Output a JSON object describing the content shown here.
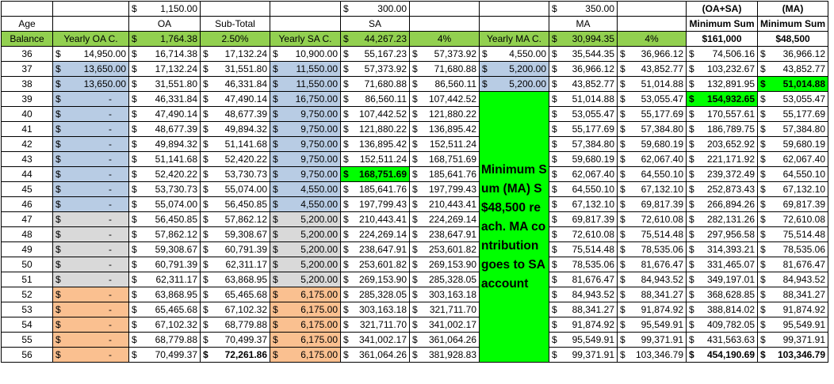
{
  "header": {
    "row1": {
      "oa_amount": "1,150.00",
      "sa_amount": "300.00",
      "ma_amount": "350.00",
      "oa_sa_label": "(OA+SA)",
      "ma_label": "(MA)"
    },
    "row2": {
      "age_label": "Age",
      "oa_label": "OA",
      "subtotal_label": "Sub-Total",
      "sa_label": "SA",
      "ma_label": "MA",
      "min_sum_1": "Minimum Sum",
      "min_sum_2": "Minimum Sum"
    },
    "row3": {
      "balance_label": "Balance",
      "yearly_oa_label": "Yearly OA C.",
      "oa_balance": "1,764.38",
      "oa_rate": "2.50%",
      "yearly_sa_label": "Yearly SA C.",
      "sa_balance": "44,267.23",
      "sa_rate": "4%",
      "yearly_ma_label": "Yearly MA C.",
      "ma_balance": "30,994.35",
      "ma_rate": "4%",
      "min_sum_oa_sa": "$161,000",
      "min_sum_ma": "$48,500"
    }
  },
  "currency_symbol": "$",
  "note_text": "Minimum Sum (MA) S$48,500 reach. MA contribution goes to SA account",
  "rows": [
    {
      "age": "36",
      "yoa": "14,950.00",
      "oa": "16,714.38",
      "sub": "17,132.24",
      "ysa": "10,900.00",
      "sa": "55,167.23",
      "sa4": "57,373.92",
      "yma": "4,550.00",
      "ma": "35,544.35",
      "ma4": "36,966.12",
      "ms": "74,506.16",
      "msma": "36,966.12"
    },
    {
      "age": "37",
      "yoa": "13,650.00",
      "oa": "17,132.24",
      "sub": "31,551.80",
      "ysa": "11,550.00",
      "sa": "57,373.92",
      "sa4": "71,680.88",
      "yma": "5,200.00",
      "ma": "36,966.12",
      "ma4": "43,852.77",
      "ms": "103,232.67",
      "msma": "43,852.77"
    },
    {
      "age": "38",
      "yoa": "13,650.00",
      "oa": "31,551.80",
      "sub": "46,331.84",
      "ysa": "11,550.00",
      "sa": "71,680.88",
      "sa4": "86,560.11",
      "yma": "5,200.00",
      "ma": "43,852.77",
      "ma4": "51,014.88",
      "ms": "132,891.95",
      "msma": "51,014.88"
    },
    {
      "age": "39",
      "yoa": "-",
      "oa": "46,331.84",
      "sub": "47,490.14",
      "ysa": "16,750.00",
      "sa": "86,560.11",
      "sa4": "107,442.52",
      "ma": "51,014.88",
      "ma4": "53,055.47",
      "ms": "154,932.65",
      "msma": "53,055.47"
    },
    {
      "age": "40",
      "yoa": "-",
      "oa": "47,490.14",
      "sub": "48,677.39",
      "ysa": "9,750.00",
      "sa": "107,442.52",
      "sa4": "121,880.22",
      "ma": "53,055.47",
      "ma4": "55,177.69",
      "ms": "170,557.61",
      "msma": "55,177.69"
    },
    {
      "age": "41",
      "yoa": "-",
      "oa": "48,677.39",
      "sub": "49,894.32",
      "ysa": "9,750.00",
      "sa": "121,880.22",
      "sa4": "136,895.42",
      "ma": "55,177.69",
      "ma4": "57,384.80",
      "ms": "186,789.75",
      "msma": "57,384.80"
    },
    {
      "age": "42",
      "yoa": "-",
      "oa": "49,894.32",
      "sub": "51,141.68",
      "ysa": "9,750.00",
      "sa": "136,895.42",
      "sa4": "152,511.24",
      "ma": "57,384.80",
      "ma4": "59,680.19",
      "ms": "203,652.92",
      "msma": "59,680.19"
    },
    {
      "age": "43",
      "yoa": "-",
      "oa": "51,141.68",
      "sub": "52,420.22",
      "ysa": "9,750.00",
      "sa": "152,511.24",
      "sa4": "168,751.69",
      "ma": "59,680.19",
      "ma4": "62,067.40",
      "ms": "221,171.92",
      "msma": "62,067.40"
    },
    {
      "age": "44",
      "yoa": "-",
      "oa": "52,420.22",
      "sub": "53,730.73",
      "ysa": "9,750.00",
      "sa": "168,751.69",
      "sa4": "185,641.76",
      "ma": "62,067.40",
      "ma4": "64,550.10",
      "ms": "239,372.49",
      "msma": "64,550.10"
    },
    {
      "age": "45",
      "yoa": "-",
      "oa": "53,730.73",
      "sub": "55,074.00",
      "ysa": "4,550.00",
      "sa": "185,641.76",
      "sa4": "197,799.43",
      "ma": "64,550.10",
      "ma4": "67,132.10",
      "ms": "252,873.43",
      "msma": "67,132.10"
    },
    {
      "age": "46",
      "yoa": "-",
      "oa": "55,074.00",
      "sub": "56,450.85",
      "ysa": "4,550.00",
      "sa": "197,799.43",
      "sa4": "210,443.41",
      "ma": "67,132.10",
      "ma4": "69,817.39",
      "ms": "266,894.26",
      "msma": "69,817.39"
    },
    {
      "age": "47",
      "yoa": "-",
      "oa": "56,450.85",
      "sub": "57,862.12",
      "ysa": "5,200.00",
      "sa": "210,443.41",
      "sa4": "224,269.14",
      "ma": "69,817.39",
      "ma4": "72,610.08",
      "ms": "282,131.26",
      "msma": "72,610.08"
    },
    {
      "age": "48",
      "yoa": "-",
      "oa": "57,862.12",
      "sub": "59,308.67",
      "ysa": "5,200.00",
      "sa": "224,269.14",
      "sa4": "238,647.91",
      "ma": "72,610.08",
      "ma4": "75,514.48",
      "ms": "297,956.58",
      "msma": "75,514.48"
    },
    {
      "age": "49",
      "yoa": "-",
      "oa": "59,308.67",
      "sub": "60,791.39",
      "ysa": "5,200.00",
      "sa": "238,647.91",
      "sa4": "253,601.82",
      "ma": "75,514.48",
      "ma4": "78,535.06",
      "ms": "314,393.21",
      "msma": "78,535.06"
    },
    {
      "age": "50",
      "yoa": "-",
      "oa": "60,791.39",
      "sub": "62,311.17",
      "ysa": "5,200.00",
      "sa": "253,601.82",
      "sa4": "269,153.90",
      "ma": "78,535.06",
      "ma4": "81,676.47",
      "ms": "331,465.07",
      "msma": "81,676.47"
    },
    {
      "age": "51",
      "yoa": "-",
      "oa": "62,311.17",
      "sub": "63,868.95",
      "ysa": "5,200.00",
      "sa": "269,153.90",
      "sa4": "285,328.05",
      "ma": "81,676.47",
      "ma4": "84,943.52",
      "ms": "349,197.01",
      "msma": "84,943.52"
    },
    {
      "age": "52",
      "yoa": "-",
      "oa": "63,868.95",
      "sub": "65,465.68",
      "ysa": "6,175.00",
      "sa": "285,328.05",
      "sa4": "303,163.18",
      "ma": "84,943.52",
      "ma4": "88,341.27",
      "ms": "368,628.85",
      "msma": "88,341.27"
    },
    {
      "age": "53",
      "yoa": "-",
      "oa": "65,465.68",
      "sub": "67,102.32",
      "ysa": "6,175.00",
      "sa": "303,163.18",
      "sa4": "321,711.70",
      "ma": "88,341.27",
      "ma4": "91,874.92",
      "ms": "388,814.02",
      "msma": "91,874.92"
    },
    {
      "age": "54",
      "yoa": "-",
      "oa": "67,102.32",
      "sub": "68,779.88",
      "ysa": "6,175.00",
      "sa": "321,711.70",
      "sa4": "341,002.17",
      "ma": "91,874.92",
      "ma4": "95,549.91",
      "ms": "409,782.05",
      "msma": "95,549.91"
    },
    {
      "age": "55",
      "yoa": "-",
      "oa": "68,779.88",
      "sub": "70,499.37",
      "ysa": "6,175.00",
      "sa": "341,002.17",
      "sa4": "361,064.26",
      "ma": "95,549.91",
      "ma4": "99,371.91",
      "ms": "431,563.63",
      "msma": "99,371.91"
    },
    {
      "age": "56",
      "yoa": "-",
      "oa": "70,499.37",
      "sub": "72,261.86",
      "ysa": "6,175.00",
      "sa": "361,064.26",
      "sa4": "381,928.83",
      "ma": "99,371.91",
      "ma4": "103,346.79",
      "ms": "454,190.69",
      "msma": "103,346.79"
    }
  ],
  "colors": {
    "header_green": "#92d050",
    "highlight_green": "#00ff00",
    "blue": "#b8cce4",
    "gray": "#d9d9d9",
    "orange": "#fac090"
  }
}
